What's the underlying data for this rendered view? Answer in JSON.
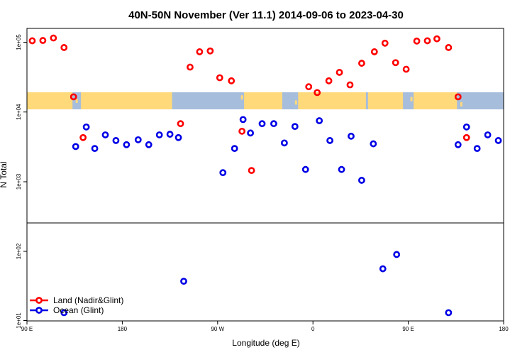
{
  "chart_data": {
    "type": "scatter",
    "title": "40N-50N November (Ver 11.1)   2014-09-06 to 2023-04-30",
    "xlabel": "Longitude (deg E)",
    "ylabel": "N Total",
    "x_ticks": [
      {
        "value": 90,
        "label": "90 E"
      },
      {
        "value": 180,
        "label": "180"
      },
      {
        "value": 270,
        "label": "90 W"
      },
      {
        "value": 360,
        "label": "0"
      },
      {
        "value": 450,
        "label": "90 E"
      },
      {
        "value": 540,
        "label": "180"
      }
    ],
    "xlim": [
      90,
      540
    ],
    "y_scale": "log",
    "ylim": [
      10,
      200000
    ],
    "y_break_at": 250,
    "y_ticks": [
      {
        "value": 10,
        "label": "1e+01"
      },
      {
        "value": 100,
        "label": "1e+02"
      },
      {
        "value": 1000,
        "label": "1e+03"
      },
      {
        "value": 10000,
        "label": "1e+04"
      },
      {
        "value": 100000,
        "label": "1e+05"
      }
    ],
    "map_band": {
      "lat_range": "40N-50N",
      "ocean_color": "#a6bddb",
      "land_color": "#ffd97a"
    },
    "legend": {
      "position": "bottom-left",
      "entries": [
        {
          "name": "Land (Nadir&Glint)",
          "color": "#ff0000"
        },
        {
          "name": "Ocean (Glint)",
          "color": "#0000e6"
        }
      ]
    },
    "series": [
      {
        "name": "Land (Nadir&Glint)",
        "color": "#ff0000",
        "points": [
          {
            "x": 95,
            "y": 105000
          },
          {
            "x": 105,
            "y": 106000
          },
          {
            "x": 115,
            "y": 115000
          },
          {
            "x": 125,
            "y": 84000
          },
          {
            "x": 134,
            "y": 16500
          },
          {
            "x": 143,
            "y": 4300
          },
          {
            "x": 235,
            "y": 6800
          },
          {
            "x": 244,
            "y": 44000
          },
          {
            "x": 253,
            "y": 73000
          },
          {
            "x": 263,
            "y": 75000
          },
          {
            "x": 272,
            "y": 31000
          },
          {
            "x": 283,
            "y": 28000
          },
          {
            "x": 293,
            "y": 5300
          },
          {
            "x": 302,
            "y": 1450
          },
          {
            "x": 356,
            "y": 23000
          },
          {
            "x": 364,
            "y": 19000
          },
          {
            "x": 375,
            "y": 28000
          },
          {
            "x": 385,
            "y": 37000
          },
          {
            "x": 395,
            "y": 24500
          },
          {
            "x": 406,
            "y": 50000
          },
          {
            "x": 418,
            "y": 73000
          },
          {
            "x": 428,
            "y": 97000
          },
          {
            "x": 438,
            "y": 51000
          },
          {
            "x": 448,
            "y": 41000
          },
          {
            "x": 458,
            "y": 104000
          },
          {
            "x": 468,
            "y": 105000
          },
          {
            "x": 477,
            "y": 112000
          },
          {
            "x": 488,
            "y": 84000
          },
          {
            "x": 497,
            "y": 16500
          },
          {
            "x": 505,
            "y": 4300
          }
        ]
      },
      {
        "name": "Ocean (Glint)",
        "color": "#0000e6",
        "points": [
          {
            "x": 125,
            "y": 13
          },
          {
            "x": 136,
            "y": 3200
          },
          {
            "x": 146,
            "y": 6100
          },
          {
            "x": 154,
            "y": 3000
          },
          {
            "x": 164,
            "y": 4700
          },
          {
            "x": 174,
            "y": 3900
          },
          {
            "x": 184,
            "y": 3400
          },
          {
            "x": 195,
            "y": 4000
          },
          {
            "x": 205,
            "y": 3400
          },
          {
            "x": 215,
            "y": 4700
          },
          {
            "x": 225,
            "y": 4800
          },
          {
            "x": 233,
            "y": 4300
          },
          {
            "x": 238,
            "y": 37
          },
          {
            "x": 275,
            "y": 1350
          },
          {
            "x": 286,
            "y": 3000
          },
          {
            "x": 294,
            "y": 7800
          },
          {
            "x": 301,
            "y": 5000
          },
          {
            "x": 312,
            "y": 6800
          },
          {
            "x": 323,
            "y": 6800
          },
          {
            "x": 333,
            "y": 3600
          },
          {
            "x": 343,
            "y": 6200
          },
          {
            "x": 353,
            "y": 1500
          },
          {
            "x": 366,
            "y": 7500
          },
          {
            "x": 376,
            "y": 3900
          },
          {
            "x": 387,
            "y": 1500
          },
          {
            "x": 396,
            "y": 4500
          },
          {
            "x": 406,
            "y": 1050
          },
          {
            "x": 417,
            "y": 3500
          },
          {
            "x": 426,
            "y": 56
          },
          {
            "x": 439,
            "y": 90
          },
          {
            "x": 488,
            "y": 13
          },
          {
            "x": 497,
            "y": 3400
          },
          {
            "x": 505,
            "y": 6100
          },
          {
            "x": 515,
            "y": 3000
          },
          {
            "x": 525,
            "y": 4700
          },
          {
            "x": 535,
            "y": 3900
          }
        ]
      }
    ]
  }
}
